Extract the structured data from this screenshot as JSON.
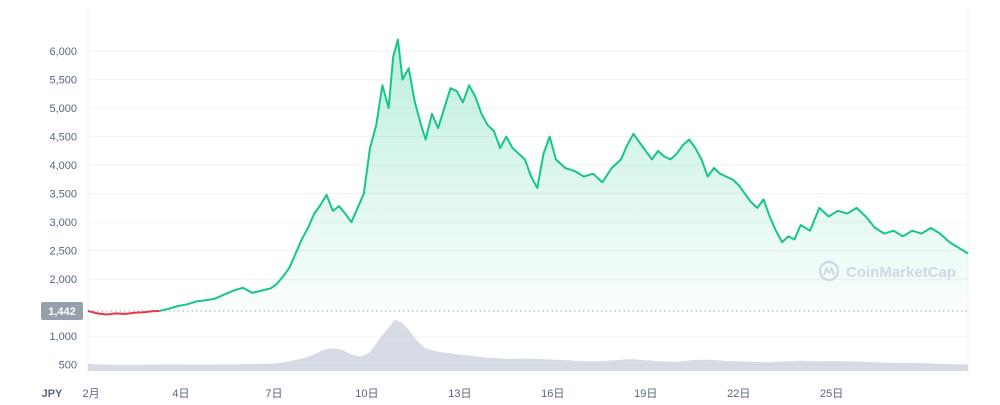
{
  "chart_data": {
    "type": "line",
    "currency_label": "JPY",
    "watermark": "CoinMarketCap",
    "baseline_value": 1442,
    "baseline_label": "1,442",
    "ylim": [
      390,
      6300
    ],
    "y_ticks": [
      {
        "value": 500,
        "label": "500"
      },
      {
        "value": 1000,
        "label": "1,000"
      },
      {
        "value": 2000,
        "label": "2,000"
      },
      {
        "value": 2500,
        "label": "2,500"
      },
      {
        "value": 3000,
        "label": "3,000"
      },
      {
        "value": 3500,
        "label": "3,500"
      },
      {
        "value": 4000,
        "label": "4,000"
      },
      {
        "value": 4500,
        "label": "4,500"
      },
      {
        "value": 5000,
        "label": "5,000"
      },
      {
        "value": 5500,
        "label": "5,500"
      },
      {
        "value": 6000,
        "label": "6,000"
      }
    ],
    "x_ticks": [
      {
        "day": 1.1,
        "label": "2月"
      },
      {
        "day": 4,
        "label": "4日"
      },
      {
        "day": 7,
        "label": "7日"
      },
      {
        "day": 10,
        "label": "10日"
      },
      {
        "day": 13,
        "label": "13日"
      },
      {
        "day": 16,
        "label": "16日"
      },
      {
        "day": 19,
        "label": "19日"
      },
      {
        "day": 22,
        "label": "22日"
      },
      {
        "day": 25,
        "label": "25日"
      }
    ],
    "x_range": [
      1,
      29.4
    ],
    "grid": true,
    "colors": {
      "up": "#16c784",
      "down": "#ea3943",
      "fill_top": "#16c784",
      "volume": "#c9cfdc",
      "grid": "#eff2f5",
      "badge": "#979fad"
    },
    "price_series": [
      {
        "x": 1.0,
        "y": 1442
      },
      {
        "x": 1.3,
        "y": 1400
      },
      {
        "x": 1.6,
        "y": 1380
      },
      {
        "x": 1.9,
        "y": 1400
      },
      {
        "x": 2.2,
        "y": 1390
      },
      {
        "x": 2.5,
        "y": 1410
      },
      {
        "x": 2.8,
        "y": 1420
      },
      {
        "x": 3.1,
        "y": 1440
      },
      {
        "x": 3.3,
        "y": 1442
      },
      {
        "x": 3.6,
        "y": 1480
      },
      {
        "x": 3.9,
        "y": 1530
      },
      {
        "x": 4.2,
        "y": 1560
      },
      {
        "x": 4.5,
        "y": 1610
      },
      {
        "x": 4.8,
        "y": 1630
      },
      {
        "x": 5.1,
        "y": 1660
      },
      {
        "x": 5.4,
        "y": 1730
      },
      {
        "x": 5.7,
        "y": 1800
      },
      {
        "x": 6.0,
        "y": 1850
      },
      {
        "x": 6.3,
        "y": 1760
      },
      {
        "x": 6.6,
        "y": 1800
      },
      {
        "x": 6.9,
        "y": 1840
      },
      {
        "x": 7.1,
        "y": 1920
      },
      {
        "x": 7.3,
        "y": 2050
      },
      {
        "x": 7.5,
        "y": 2200
      },
      {
        "x": 7.7,
        "y": 2450
      },
      {
        "x": 7.9,
        "y": 2700
      },
      {
        "x": 8.1,
        "y": 2900
      },
      {
        "x": 8.3,
        "y": 3150
      },
      {
        "x": 8.5,
        "y": 3300
      },
      {
        "x": 8.7,
        "y": 3480
      },
      {
        "x": 8.9,
        "y": 3200
      },
      {
        "x": 9.1,
        "y": 3280
      },
      {
        "x": 9.3,
        "y": 3150
      },
      {
        "x": 9.5,
        "y": 3000
      },
      {
        "x": 9.7,
        "y": 3250
      },
      {
        "x": 9.9,
        "y": 3500
      },
      {
        "x": 10.1,
        "y": 4300
      },
      {
        "x": 10.3,
        "y": 4700
      },
      {
        "x": 10.5,
        "y": 5400
      },
      {
        "x": 10.7,
        "y": 5000
      },
      {
        "x": 10.85,
        "y": 5900
      },
      {
        "x": 11.0,
        "y": 6200
      },
      {
        "x": 11.15,
        "y": 5500
      },
      {
        "x": 11.35,
        "y": 5700
      },
      {
        "x": 11.55,
        "y": 5100
      },
      {
        "x": 11.75,
        "y": 4700
      },
      {
        "x": 11.9,
        "y": 4450
      },
      {
        "x": 12.1,
        "y": 4900
      },
      {
        "x": 12.3,
        "y": 4650
      },
      {
        "x": 12.5,
        "y": 5000
      },
      {
        "x": 12.7,
        "y": 5350
      },
      {
        "x": 12.9,
        "y": 5300
      },
      {
        "x": 13.1,
        "y": 5100
      },
      {
        "x": 13.3,
        "y": 5400
      },
      {
        "x": 13.5,
        "y": 5200
      },
      {
        "x": 13.7,
        "y": 4900
      },
      {
        "x": 13.9,
        "y": 4700
      },
      {
        "x": 14.1,
        "y": 4600
      },
      {
        "x": 14.3,
        "y": 4300
      },
      {
        "x": 14.5,
        "y": 4500
      },
      {
        "x": 14.7,
        "y": 4300
      },
      {
        "x": 14.9,
        "y": 4200
      },
      {
        "x": 15.1,
        "y": 4100
      },
      {
        "x": 15.3,
        "y": 3800
      },
      {
        "x": 15.5,
        "y": 3600
      },
      {
        "x": 15.7,
        "y": 4200
      },
      {
        "x": 15.9,
        "y": 4500
      },
      {
        "x": 16.1,
        "y": 4100
      },
      {
        "x": 16.4,
        "y": 3950
      },
      {
        "x": 16.7,
        "y": 3900
      },
      {
        "x": 17.0,
        "y": 3800
      },
      {
        "x": 17.3,
        "y": 3850
      },
      {
        "x": 17.6,
        "y": 3700
      },
      {
        "x": 17.9,
        "y": 3950
      },
      {
        "x": 18.2,
        "y": 4100
      },
      {
        "x": 18.4,
        "y": 4350
      },
      {
        "x": 18.6,
        "y": 4550
      },
      {
        "x": 18.8,
        "y": 4400
      },
      {
        "x": 19.0,
        "y": 4250
      },
      {
        "x": 19.2,
        "y": 4100
      },
      {
        "x": 19.4,
        "y": 4250
      },
      {
        "x": 19.6,
        "y": 4150
      },
      {
        "x": 19.8,
        "y": 4100
      },
      {
        "x": 20.0,
        "y": 4200
      },
      {
        "x": 20.2,
        "y": 4350
      },
      {
        "x": 20.4,
        "y": 4450
      },
      {
        "x": 20.6,
        "y": 4300
      },
      {
        "x": 20.8,
        "y": 4100
      },
      {
        "x": 21.0,
        "y": 3800
      },
      {
        "x": 21.2,
        "y": 3950
      },
      {
        "x": 21.4,
        "y": 3850
      },
      {
        "x": 21.6,
        "y": 3800
      },
      {
        "x": 21.8,
        "y": 3750
      },
      {
        "x": 22.0,
        "y": 3650
      },
      {
        "x": 22.2,
        "y": 3500
      },
      {
        "x": 22.4,
        "y": 3350
      },
      {
        "x": 22.6,
        "y": 3250
      },
      {
        "x": 22.8,
        "y": 3400
      },
      {
        "x": 23.0,
        "y": 3100
      },
      {
        "x": 23.2,
        "y": 2850
      },
      {
        "x": 23.4,
        "y": 2650
      },
      {
        "x": 23.6,
        "y": 2750
      },
      {
        "x": 23.8,
        "y": 2700
      },
      {
        "x": 24.0,
        "y": 2950
      },
      {
        "x": 24.3,
        "y": 2850
      },
      {
        "x": 24.6,
        "y": 3250
      },
      {
        "x": 24.9,
        "y": 3100
      },
      {
        "x": 25.2,
        "y": 3200
      },
      {
        "x": 25.5,
        "y": 3150
      },
      {
        "x": 25.8,
        "y": 3250
      },
      {
        "x": 26.1,
        "y": 3100
      },
      {
        "x": 26.4,
        "y": 2900
      },
      {
        "x": 26.7,
        "y": 2800
      },
      {
        "x": 27.0,
        "y": 2850
      },
      {
        "x": 27.3,
        "y": 2750
      },
      {
        "x": 27.6,
        "y": 2850
      },
      {
        "x": 27.9,
        "y": 2800
      },
      {
        "x": 28.2,
        "y": 2900
      },
      {
        "x": 28.5,
        "y": 2800
      },
      {
        "x": 28.8,
        "y": 2650
      },
      {
        "x": 29.1,
        "y": 2550
      },
      {
        "x": 29.4,
        "y": 2450
      }
    ],
    "volume_series": [
      {
        "x": 1.0,
        "y": 520
      },
      {
        "x": 1.5,
        "y": 500
      },
      {
        "x": 2.0,
        "y": 490
      },
      {
        "x": 2.5,
        "y": 490
      },
      {
        "x": 3.0,
        "y": 495
      },
      {
        "x": 3.5,
        "y": 505
      },
      {
        "x": 4.0,
        "y": 500
      },
      {
        "x": 4.5,
        "y": 495
      },
      {
        "x": 5.0,
        "y": 500
      },
      {
        "x": 5.5,
        "y": 500
      },
      {
        "x": 6.0,
        "y": 510
      },
      {
        "x": 6.5,
        "y": 515
      },
      {
        "x": 7.0,
        "y": 520
      },
      {
        "x": 7.5,
        "y": 560
      },
      {
        "x": 8.0,
        "y": 620
      },
      {
        "x": 8.3,
        "y": 680
      },
      {
        "x": 8.6,
        "y": 760
      },
      {
        "x": 8.9,
        "y": 790
      },
      {
        "x": 9.2,
        "y": 760
      },
      {
        "x": 9.5,
        "y": 680
      },
      {
        "x": 9.8,
        "y": 640
      },
      {
        "x": 10.1,
        "y": 720
      },
      {
        "x": 10.4,
        "y": 950
      },
      {
        "x": 10.7,
        "y": 1150
      },
      {
        "x": 10.9,
        "y": 1290
      },
      {
        "x": 11.1,
        "y": 1250
      },
      {
        "x": 11.3,
        "y": 1150
      },
      {
        "x": 11.5,
        "y": 1000
      },
      {
        "x": 11.7,
        "y": 880
      },
      {
        "x": 11.9,
        "y": 790
      },
      {
        "x": 12.2,
        "y": 740
      },
      {
        "x": 12.5,
        "y": 710
      },
      {
        "x": 13.0,
        "y": 680
      },
      {
        "x": 13.5,
        "y": 650
      },
      {
        "x": 14.0,
        "y": 620
      },
      {
        "x": 14.5,
        "y": 600
      },
      {
        "x": 15.0,
        "y": 610
      },
      {
        "x": 15.5,
        "y": 600
      },
      {
        "x": 16.0,
        "y": 590
      },
      {
        "x": 16.5,
        "y": 580
      },
      {
        "x": 17.0,
        "y": 560
      },
      {
        "x": 17.5,
        "y": 560
      },
      {
        "x": 18.0,
        "y": 580
      },
      {
        "x": 18.5,
        "y": 600
      },
      {
        "x": 19.0,
        "y": 580
      },
      {
        "x": 19.5,
        "y": 560
      },
      {
        "x": 20.0,
        "y": 550
      },
      {
        "x": 20.5,
        "y": 580
      },
      {
        "x": 21.0,
        "y": 590
      },
      {
        "x": 21.5,
        "y": 570
      },
      {
        "x": 22.0,
        "y": 560
      },
      {
        "x": 22.5,
        "y": 550
      },
      {
        "x": 23.0,
        "y": 545
      },
      {
        "x": 23.5,
        "y": 560
      },
      {
        "x": 24.0,
        "y": 570
      },
      {
        "x": 24.5,
        "y": 560
      },
      {
        "x": 25.0,
        "y": 565
      },
      {
        "x": 25.5,
        "y": 560
      },
      {
        "x": 26.0,
        "y": 555
      },
      {
        "x": 26.5,
        "y": 540
      },
      {
        "x": 27.0,
        "y": 530
      },
      {
        "x": 27.5,
        "y": 530
      },
      {
        "x": 28.0,
        "y": 525
      },
      {
        "x": 28.5,
        "y": 515
      },
      {
        "x": 29.0,
        "y": 505
      },
      {
        "x": 29.4,
        "y": 500
      }
    ]
  }
}
